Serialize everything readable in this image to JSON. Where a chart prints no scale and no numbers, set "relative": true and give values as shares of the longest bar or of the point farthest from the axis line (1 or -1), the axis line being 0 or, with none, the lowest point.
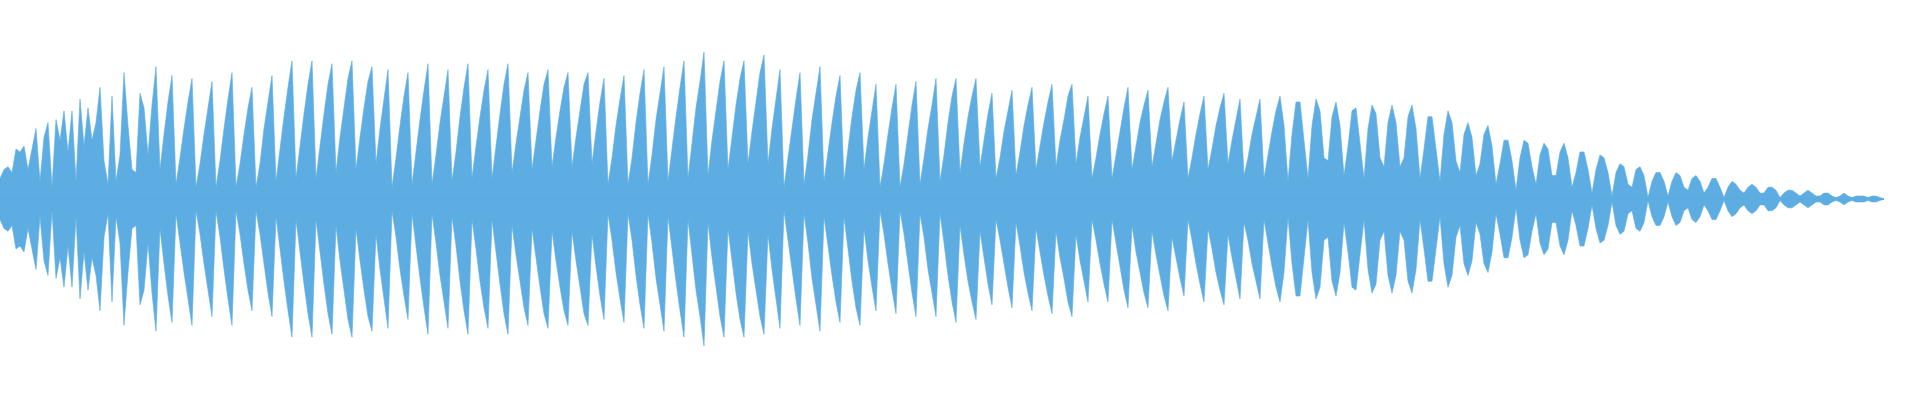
{
  "chart_data": {
    "type": "area",
    "relative": true,
    "categories": [
      null,
      null,
      null,
      null,
      null,
      null,
      null,
      null,
      null,
      null,
      null,
      null,
      null,
      null,
      null,
      null,
      null,
      null,
      null,
      null,
      null,
      null,
      null,
      null,
      null,
      null,
      null,
      null,
      null,
      null,
      null,
      null,
      null,
      null,
      null,
      null,
      null,
      null,
      null,
      null,
      null,
      null,
      null,
      null,
      null,
      null,
      null,
      null,
      null,
      null,
      null,
      null,
      null,
      null,
      null,
      null,
      null,
      null,
      null,
      null,
      null,
      null,
      null,
      null,
      null,
      null,
      null,
      null,
      null,
      null,
      null,
      null,
      null,
      null,
      null,
      null,
      null,
      null,
      null,
      null,
      null,
      null,
      null,
      null,
      null,
      null,
      null,
      null,
      null,
      null,
      null,
      null,
      null,
      null,
      null,
      null,
      null,
      null,
      null,
      null,
      null,
      null,
      null,
      null,
      null,
      null,
      null,
      null,
      null,
      null,
      null,
      null,
      null,
      null,
      null,
      null,
      null,
      null,
      null,
      null,
      null,
      null,
      null,
      null,
      null,
      null,
      null,
      null,
      null,
      null,
      null,
      null,
      null,
      null,
      null,
      null,
      null,
      null,
      null,
      null,
      null,
      null,
      null,
      null,
      null,
      null,
      null,
      null,
      null,
      null,
      null,
      null,
      null,
      null,
      null,
      null,
      null,
      null,
      null,
      null,
      null,
      null,
      null,
      null,
      null,
      null,
      null,
      null,
      null,
      null,
      null,
      null,
      null,
      null,
      null,
      null,
      null,
      null,
      null,
      null,
      null,
      null,
      null,
      null,
      null,
      null,
      null,
      null,
      null,
      null,
      null,
      null,
      null,
      null,
      null,
      null,
      null,
      null,
      null,
      null,
      null,
      null,
      null,
      null,
      null,
      null,
      null,
      null,
      null,
      null,
      null,
      null,
      null,
      null,
      null,
      null,
      null,
      null,
      null,
      null,
      null,
      null,
      null,
      null,
      null,
      null,
      null,
      null,
      null,
      null,
      null,
      null,
      null,
      null,
      null,
      null,
      null,
      null,
      null,
      null,
      null,
      null,
      null,
      null,
      null,
      null,
      null,
      null,
      null,
      null,
      null,
      null,
      null,
      null,
      null,
      null,
      null,
      null,
      null,
      null,
      null,
      null,
      null,
      null,
      null,
      null,
      null,
      null,
      null,
      null,
      null,
      null,
      null,
      null,
      null,
      null,
      null,
      null,
      null,
      null,
      null,
      null,
      null,
      null,
      null,
      null,
      null,
      null,
      null,
      null,
      null,
      null,
      null,
      null,
      null,
      null,
      null,
      null,
      null,
      null,
      null,
      null,
      null,
      null,
      null,
      null,
      null,
      null,
      null,
      null,
      null,
      null,
      null,
      null,
      null,
      null,
      null,
      null,
      null,
      null,
      null,
      null,
      null,
      null,
      null,
      null,
      null,
      null,
      null,
      null,
      null,
      null,
      null,
      null,
      null,
      null,
      null,
      null,
      null,
      null,
      null,
      null,
      null,
      null,
      null,
      null,
      null,
      null,
      null,
      null,
      null,
      null,
      null,
      null,
      null,
      null,
      null,
      null,
      null,
      null,
      null,
      null,
      null,
      null,
      null,
      null,
      null,
      null,
      null,
      null,
      null,
      null,
      null,
      null,
      null,
      null,
      null,
      null,
      null,
      null,
      null,
      null,
      null,
      null,
      null,
      null,
      null,
      null,
      null,
      null,
      null,
      null,
      null,
      null,
      null,
      null,
      null,
      null,
      null,
      null,
      null,
      null,
      null,
      null,
      null,
      null,
      null,
      null,
      null,
      null,
      null,
      null,
      null,
      null,
      null,
      null,
      null,
      null,
      null,
      null,
      null,
      null,
      null,
      null,
      null,
      null,
      null,
      null,
      null,
      null,
      null,
      null,
      null,
      null,
      null,
      null,
      null,
      null,
      null,
      null,
      null,
      null,
      null,
      null,
      null,
      null,
      null,
      null,
      null,
      null,
      null,
      null,
      null,
      null,
      null,
      null,
      null,
      null,
      null,
      null,
      null,
      null,
      null,
      null,
      null,
      null,
      null,
      null,
      null,
      null,
      null,
      null
    ],
    "series": [
      {
        "color": "#5dade2",
        "values": [
          0.14,
          0.2,
          0.22,
          0.18,
          0.34,
          0.32,
          0.36,
          0.2,
          0.34,
          0.48,
          0.12,
          0.42,
          0.52,
          0.08,
          0.54,
          0.4,
          0.6,
          0.32,
          0.6,
          0.12,
          0.68,
          0.36,
          0.62,
          0.4,
          0.52,
          0.76,
          0.26,
          0.1,
          0.7,
          0.12,
          0.3,
          0.86,
          0.5,
          0.2,
          0.18,
          0.72,
          0.62,
          0.3,
          0.64,
          0.9,
          0.2,
          0.44,
          0.66,
          0.84,
          0.1,
          0.28,
          0.48,
          0.66,
          0.82,
          0.08,
          0.24,
          0.44,
          0.62,
          0.8,
          0.08,
          0.26,
          0.48,
          0.68,
          0.86,
          0.08,
          0.24,
          0.44,
          0.62,
          0.76,
          0.08,
          0.24,
          0.48,
          0.66,
          0.84,
          0.12,
          0.34,
          0.56,
          0.76,
          0.94,
          0.14,
          0.36,
          0.58,
          0.78,
          0.94,
          0.14,
          0.36,
          0.58,
          0.78,
          0.92,
          0.18,
          0.42,
          0.62,
          0.82,
          0.94,
          0.2,
          0.42,
          0.62,
          0.8,
          0.9,
          0.24,
          0.48,
          0.68,
          0.88,
          0.08,
          0.28,
          0.5,
          0.7,
          0.86,
          0.1,
          0.32,
          0.54,
          0.74,
          0.92,
          0.1,
          0.3,
          0.52,
          0.7,
          0.88,
          0.12,
          0.32,
          0.56,
          0.76,
          0.92,
          0.14,
          0.36,
          0.56,
          0.74,
          0.88,
          0.14,
          0.36,
          0.58,
          0.78,
          0.92,
          0.18,
          0.38,
          0.56,
          0.74,
          0.86,
          0.2,
          0.4,
          0.6,
          0.78,
          0.88,
          0.22,
          0.42,
          0.6,
          0.76,
          0.86,
          0.22,
          0.42,
          0.6,
          0.78,
          0.86,
          0.24,
          0.46,
          0.66,
          0.82,
          0.1,
          0.28,
          0.5,
          0.68,
          0.84,
          0.1,
          0.28,
          0.52,
          0.72,
          0.88,
          0.1,
          0.3,
          0.54,
          0.72,
          0.9,
          0.12,
          0.34,
          0.56,
          0.76,
          0.94,
          0.14,
          0.38,
          0.62,
          0.8,
          1,
          0.16,
          0.4,
          0.6,
          0.8,
          0.94,
          0.2,
          0.42,
          0.64,
          0.82,
          0.94,
          0.24,
          0.46,
          0.66,
          0.86,
          0.98,
          0.24,
          0.48,
          0.68,
          0.88,
          0.08,
          0.28,
          0.48,
          0.68,
          0.86,
          0.1,
          0.3,
          0.54,
          0.72,
          0.9,
          0.12,
          0.32,
          0.52,
          0.7,
          0.84,
          0.12,
          0.34,
          0.56,
          0.74,
          0.86,
          0.2,
          0.42,
          0.6,
          0.78,
          0.08,
          0.24,
          0.44,
          0.62,
          0.78,
          0.08,
          0.24,
          0.44,
          0.64,
          0.8,
          0.1,
          0.28,
          0.48,
          0.64,
          0.82,
          0.12,
          0.3,
          0.52,
          0.7,
          0.82,
          0.18,
          0.38,
          0.56,
          0.7,
          0.82,
          0.22,
          0.4,
          0.58,
          0.72,
          0.14,
          0.28,
          0.46,
          0.6,
          0.74,
          0.16,
          0.32,
          0.5,
          0.64,
          0.76,
          0.2,
          0.36,
          0.52,
          0.66,
          0.78,
          0.22,
          0.4,
          0.54,
          0.7,
          0.78,
          0.24,
          0.42,
          0.56,
          0.7,
          0.14,
          0.28,
          0.44,
          0.58,
          0.7,
          0.14,
          0.3,
          0.46,
          0.62,
          0.76,
          0.2,
          0.36,
          0.52,
          0.64,
          0.74,
          0.22,
          0.38,
          0.54,
          0.66,
          0.76,
          0.26,
          0.4,
          0.54,
          0.66,
          0.14,
          0.28,
          0.44,
          0.58,
          0.7,
          0.2,
          0.34,
          0.5,
          0.62,
          0.72,
          0.24,
          0.4,
          0.54,
          0.68,
          0.16,
          0.28,
          0.44,
          0.56,
          0.68,
          0.14,
          0.3,
          0.46,
          0.6,
          0.7,
          0.5,
          0.12,
          0.44,
          0.66,
          0.66,
          0.4,
          0.14,
          0.5,
          0.68,
          0.6,
          0.28,
          0.26,
          0.56,
          0.66,
          0.5,
          0.16,
          0.36,
          0.6,
          0.62,
          0.38,
          0.14,
          0.48,
          0.64,
          0.58,
          0.28,
          0.22,
          0.52,
          0.64,
          0.52,
          0.22,
          0.28,
          0.56,
          0.64,
          0.48,
          0.14,
          0.34,
          0.56,
          0.56,
          0.34,
          0.12,
          0.44,
          0.6,
          0.52,
          0.26,
          0.18,
          0.44,
          0.52,
          0.42,
          0.16,
          0.24,
          0.44,
          0.5,
          0.36,
          0.1,
          0.24,
          0.4,
          0.4,
          0.26,
          0.06,
          0.28,
          0.4,
          0.38,
          0.22,
          0.1,
          0.3,
          0.38,
          0.34,
          0.16,
          0.16,
          0.32,
          0.38,
          0.28,
          0.08,
          0.18,
          0.32,
          0.32,
          0.2,
          0.04,
          0.2,
          0.3,
          0.28,
          0.18,
          0.02,
          0.18,
          0.24,
          0.22,
          0.1,
          0.08,
          0.2,
          0.22,
          0.16,
          0.01,
          0.12,
          0.18,
          0.18,
          0.12,
          0.02,
          0.12,
          0.18,
          0.16,
          0.08,
          0.06,
          0.14,
          0.16,
          0.12,
          0.04,
          0.08,
          0.14,
          0.14,
          0.08,
          0.01,
          0.08,
          0.12,
          0.1,
          0.06,
          0.04,
          0.08,
          0.1,
          0.08,
          0.04,
          0.04,
          0.08,
          0.08,
          0.06,
          0.01,
          0.04,
          0.06,
          0.06,
          0.04,
          0.02,
          0.04,
          0.06,
          0.04,
          0.02,
          0.02,
          0.04,
          0.04,
          0.02,
          0.01,
          0.02,
          0.04,
          0.02,
          0.01,
          0.02,
          0.02,
          0.02,
          0.01,
          0.02,
          0.02,
          0.01,
          0
        ]
      },
      {
        "color": "#5dade2",
        "values": [
          -0.14,
          -0.2,
          -0.22,
          -0.18,
          -0.34,
          -0.32,
          -0.36,
          -0.2,
          -0.34,
          -0.48,
          -0.12,
          -0.42,
          -0.52,
          -0.08,
          -0.54,
          -0.4,
          -0.6,
          -0.32,
          -0.6,
          -0.12,
          -0.68,
          -0.36,
          -0.62,
          -0.4,
          -0.52,
          -0.76,
          -0.26,
          -0.1,
          -0.7,
          -0.12,
          -0.3,
          -0.86,
          -0.5,
          -0.2,
          -0.18,
          -0.72,
          -0.62,
          -0.3,
          -0.64,
          -0.9,
          -0.2,
          -0.44,
          -0.66,
          -0.84,
          -0.1,
          -0.3,
          -0.5,
          -0.68,
          -0.86,
          -0.08,
          -0.24,
          -0.44,
          -0.62,
          -0.8,
          -0.08,
          -0.26,
          -0.48,
          -0.68,
          -0.86,
          -0.08,
          -0.24,
          -0.44,
          -0.62,
          -0.76,
          -0.08,
          -0.24,
          -0.44,
          -0.64,
          -0.8,
          -0.12,
          -0.34,
          -0.56,
          -0.76,
          -0.94,
          -0.14,
          -0.36,
          -0.58,
          -0.78,
          -0.94,
          -0.14,
          -0.36,
          -0.58,
          -0.78,
          -0.92,
          -0.18,
          -0.42,
          -0.62,
          -0.82,
          -0.94,
          -0.2,
          -0.42,
          -0.62,
          -0.8,
          -0.9,
          -0.24,
          -0.48,
          -0.68,
          -0.88,
          -0.08,
          -0.26,
          -0.48,
          -0.66,
          -0.82,
          -0.1,
          -0.32,
          -0.54,
          -0.74,
          -0.92,
          -0.1,
          -0.3,
          -0.52,
          -0.7,
          -0.88,
          -0.12,
          -0.32,
          -0.56,
          -0.76,
          -0.92,
          -0.14,
          -0.34,
          -0.56,
          -0.74,
          -0.88,
          -0.14,
          -0.36,
          -0.58,
          -0.78,
          -0.92,
          -0.18,
          -0.38,
          -0.56,
          -0.74,
          -0.86,
          -0.2,
          -0.4,
          -0.6,
          -0.78,
          -0.88,
          -0.22,
          -0.42,
          -0.6,
          -0.76,
          -0.86,
          -0.22,
          -0.42,
          -0.6,
          -0.78,
          -0.86,
          -0.24,
          -0.46,
          -0.66,
          -0.82,
          -0.1,
          -0.28,
          -0.5,
          -0.68,
          -0.84,
          -0.1,
          -0.28,
          -0.52,
          -0.72,
          -0.88,
          -0.1,
          -0.3,
          -0.54,
          -0.72,
          -0.9,
          -0.12,
          -0.34,
          -0.56,
          -0.76,
          -0.94,
          -0.14,
          -0.38,
          -0.62,
          -0.8,
          -1,
          -0.16,
          -0.4,
          -0.6,
          -0.8,
          -0.94,
          -0.2,
          -0.42,
          -0.64,
          -0.82,
          -0.94,
          -0.22,
          -0.44,
          -0.62,
          -0.8,
          -0.92,
          -0.24,
          -0.48,
          -0.68,
          -0.88,
          -0.08,
          -0.28,
          -0.48,
          -0.68,
          -0.86,
          -0.1,
          -0.3,
          -0.54,
          -0.72,
          -0.9,
          -0.12,
          -0.32,
          -0.52,
          -0.7,
          -0.84,
          -0.12,
          -0.34,
          -0.56,
          -0.74,
          -0.86,
          -0.2,
          -0.42,
          -0.6,
          -0.76,
          -0.08,
          -0.24,
          -0.44,
          -0.62,
          -0.78,
          -0.08,
          -0.24,
          -0.44,
          -0.64,
          -0.8,
          -0.1,
          -0.26,
          -0.48,
          -0.64,
          -0.8,
          -0.1,
          -0.3,
          -0.52,
          -0.7,
          -0.84,
          -0.18,
          -0.38,
          -0.56,
          -0.7,
          -0.82,
          -0.22,
          -0.4,
          -0.58,
          -0.72,
          -0.14,
          -0.28,
          -0.44,
          -0.6,
          -0.74,
          -0.16,
          -0.32,
          -0.5,
          -0.64,
          -0.76,
          -0.2,
          -0.36,
          -0.52,
          -0.66,
          -0.78,
          -0.22,
          -0.4,
          -0.54,
          -0.7,
          -0.8,
          -0.24,
          -0.42,
          -0.56,
          -0.7,
          -0.14,
          -0.28,
          -0.44,
          -0.58,
          -0.7,
          -0.14,
          -0.3,
          -0.46,
          -0.62,
          -0.74,
          -0.18,
          -0.36,
          -0.5,
          -0.64,
          -0.74,
          -0.22,
          -0.38,
          -0.52,
          -0.66,
          -0.76,
          -0.26,
          -0.4,
          -0.54,
          -0.66,
          -0.14,
          -0.28,
          -0.44,
          -0.58,
          -0.7,
          -0.2,
          -0.34,
          -0.5,
          -0.62,
          -0.72,
          -0.24,
          -0.4,
          -0.54,
          -0.68,
          -0.16,
          -0.28,
          -0.44,
          -0.56,
          -0.68,
          -0.14,
          -0.3,
          -0.46,
          -0.6,
          -0.7,
          -0.5,
          -0.12,
          -0.44,
          -0.66,
          -0.66,
          -0.4,
          -0.14,
          -0.5,
          -0.68,
          -0.6,
          -0.28,
          -0.26,
          -0.56,
          -0.66,
          -0.5,
          -0.16,
          -0.36,
          -0.6,
          -0.62,
          -0.38,
          -0.14,
          -0.48,
          -0.64,
          -0.58,
          -0.28,
          -0.22,
          -0.52,
          -0.64,
          -0.52,
          -0.22,
          -0.28,
          -0.56,
          -0.64,
          -0.48,
          -0.14,
          -0.34,
          -0.56,
          -0.56,
          -0.34,
          -0.12,
          -0.44,
          -0.6,
          -0.52,
          -0.26,
          -0.18,
          -0.44,
          -0.52,
          -0.42,
          -0.16,
          -0.24,
          -0.44,
          -0.5,
          -0.36,
          -0.1,
          -0.24,
          -0.4,
          -0.4,
          -0.26,
          -0.06,
          -0.28,
          -0.4,
          -0.38,
          -0.22,
          -0.1,
          -0.3,
          -0.38,
          -0.34,
          -0.16,
          -0.16,
          -0.32,
          -0.38,
          -0.28,
          -0.08,
          -0.18,
          -0.32,
          -0.32,
          -0.2,
          -0.04,
          -0.2,
          -0.3,
          -0.28,
          -0.18,
          -0.02,
          -0.18,
          -0.24,
          -0.22,
          -0.1,
          -0.08,
          -0.2,
          -0.22,
          -0.16,
          -0.01,
          -0.12,
          -0.18,
          -0.18,
          -0.12,
          -0.02,
          -0.12,
          -0.18,
          -0.16,
          -0.08,
          -0.06,
          -0.14,
          -0.16,
          -0.12,
          -0.04,
          -0.08,
          -0.14,
          -0.14,
          -0.08,
          -0.01,
          -0.08,
          -0.12,
          -0.1,
          -0.06,
          -0.04,
          -0.08,
          -0.1,
          -0.08,
          -0.04,
          -0.04,
          -0.08,
          -0.08,
          -0.06,
          -0.01,
          -0.04,
          -0.06,
          -0.06,
          -0.04,
          -0.02,
          -0.04,
          -0.06,
          -0.04,
          -0.02,
          -0.02,
          -0.04,
          -0.04,
          -0.02,
          -0.01,
          -0.02,
          -0.04,
          -0.02,
          -0.01,
          -0.02,
          -0.02,
          -0.02,
          -0.01,
          -0.02,
          -0.02,
          -0.01,
          0
        ]
      }
    ]
  }
}
